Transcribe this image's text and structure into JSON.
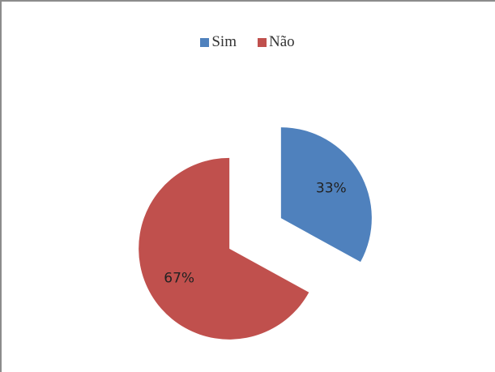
{
  "chart_data": {
    "type": "pie",
    "categories": [
      "Sim",
      "Não"
    ],
    "values": [
      33,
      67
    ],
    "data_labels": [
      "33%",
      "67%"
    ],
    "colors": [
      "#4f81bd",
      "#c0504d"
    ],
    "exploded": true,
    "legend_position": "top"
  }
}
